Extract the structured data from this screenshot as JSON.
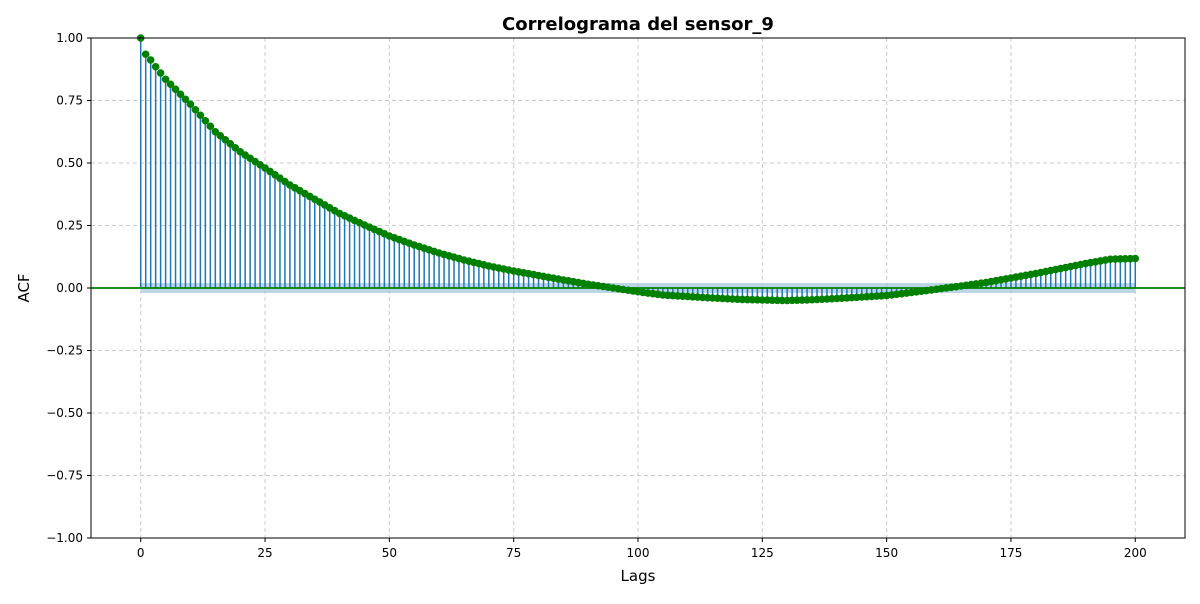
{
  "chart_data": {
    "type": "stem",
    "title": "Correlograma del sensor_9",
    "xlabel": "Lags",
    "ylabel": "ACF",
    "xlim": [
      -10,
      210
    ],
    "ylim": [
      -1.0,
      1.0
    ],
    "x_ticks": [
      0,
      25,
      50,
      75,
      100,
      125,
      150,
      175,
      200
    ],
    "y_ticks": [
      -1.0,
      -0.75,
      -0.5,
      -0.25,
      0.0,
      0.25,
      0.5,
      0.75,
      1.0
    ],
    "x_tick_labels": [
      "0",
      "25",
      "50",
      "75",
      "100",
      "125",
      "150",
      "175",
      "200"
    ],
    "y_tick_labels": [
      "−1.00",
      "−0.75",
      "−0.50",
      "−0.25",
      "0.00",
      "0.25",
      "0.50",
      "0.75",
      "1.00"
    ],
    "grid": true,
    "confidence_band": 0.02,
    "lag_count": 201,
    "anchors": [
      [
        0,
        1.0
      ],
      [
        1,
        0.935
      ],
      [
        2,
        0.912
      ],
      [
        3,
        0.885
      ],
      [
        5,
        0.835
      ],
      [
        10,
        0.735
      ],
      [
        15,
        0.625
      ],
      [
        20,
        0.545
      ],
      [
        25,
        0.48
      ],
      [
        30,
        0.412
      ],
      [
        35,
        0.355
      ],
      [
        40,
        0.298
      ],
      [
        45,
        0.252
      ],
      [
        50,
        0.208
      ],
      [
        55,
        0.172
      ],
      [
        60,
        0.14
      ],
      [
        65,
        0.112
      ],
      [
        70,
        0.088
      ],
      [
        75,
        0.068
      ],
      [
        80,
        0.05
      ],
      [
        85,
        0.032
      ],
      [
        90,
        0.015
      ],
      [
        95,
        0.0
      ],
      [
        100,
        -0.015
      ],
      [
        105,
        -0.028
      ],
      [
        110,
        -0.034
      ],
      [
        115,
        -0.04
      ],
      [
        120,
        -0.045
      ],
      [
        125,
        -0.048
      ],
      [
        130,
        -0.05
      ],
      [
        135,
        -0.047
      ],
      [
        140,
        -0.042
      ],
      [
        145,
        -0.036
      ],
      [
        150,
        -0.03
      ],
      [
        155,
        -0.018
      ],
      [
        160,
        -0.005
      ],
      [
        165,
        0.008
      ],
      [
        170,
        0.022
      ],
      [
        175,
        0.04
      ],
      [
        180,
        0.058
      ],
      [
        185,
        0.078
      ],
      [
        190,
        0.098
      ],
      [
        195,
        0.115
      ],
      [
        200,
        0.118
      ]
    ],
    "colors": {
      "stem": "#1f77b4",
      "marker": "#008000",
      "baseline": "#008000",
      "band": "#a6c8e0",
      "grid": "#cccccc"
    }
  }
}
